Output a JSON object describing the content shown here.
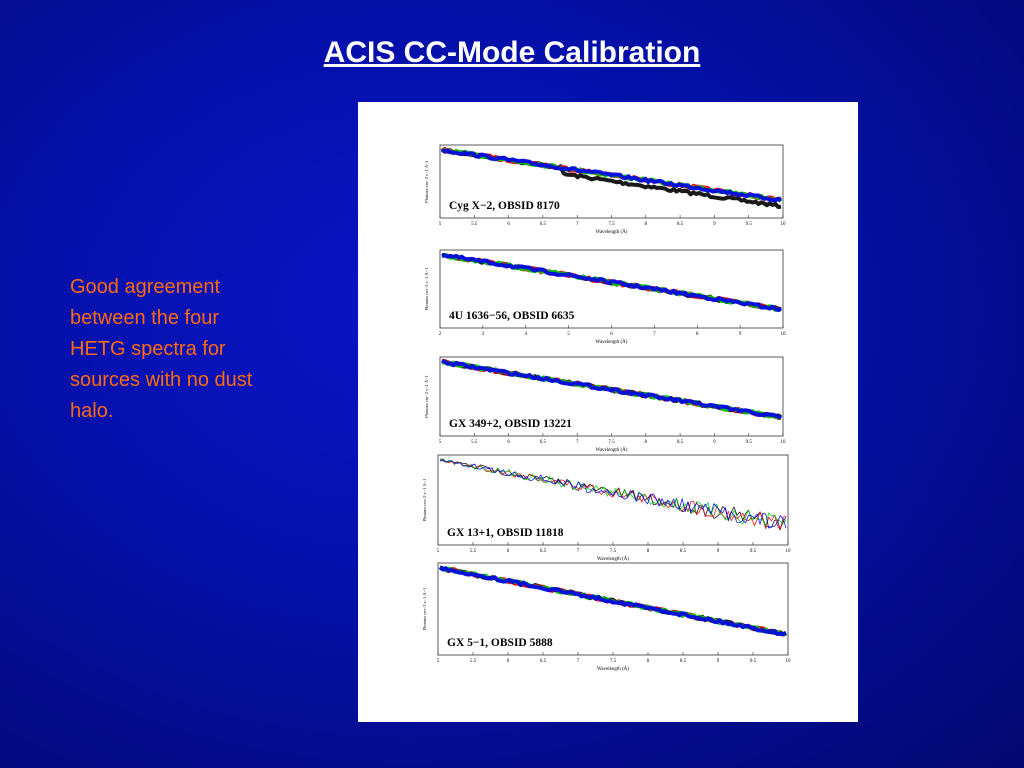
{
  "title": "ACIS CC-Mode Calibration",
  "body": "Good agreement between the four HETG spectra for sources with no dust halo.",
  "panels": [
    {
      "label": "Cyg X−2, OBSID 8170",
      "x_label": "Wavelength (Å)",
      "y_label": "Photons cm−2 s−1 Å−1",
      "x_ticks": [
        "5",
        "5.5",
        "6",
        "6.5",
        "7",
        "7.5",
        "8",
        "8.5",
        "9",
        "9.5",
        "10"
      ]
    },
    {
      "label": "4U 1636−56, OBSID 6635",
      "x_label": "Wavelength (Å)",
      "y_label": "Photons cm−2 s−1 Å−1",
      "x_ticks": [
        "2",
        "3",
        "4",
        "5",
        "6",
        "7",
        "8",
        "9",
        "10"
      ]
    },
    {
      "label": "GX 349+2, OBSID 13221",
      "x_label": "Wavelength (Å)",
      "y_label": "Photons cm−2 s−1 Å−1",
      "x_ticks": [
        "5",
        "5.5",
        "6",
        "6.5",
        "7",
        "7.5",
        "8",
        "8.5",
        "9",
        "9.5",
        "10"
      ]
    },
    {
      "label": "GX 13+1, OBSID 11818",
      "x_label": "Wavelength (Å)",
      "y_label": "Photons cm−2 s−1 Å−1",
      "x_ticks": [
        "5",
        "5.5",
        "6",
        "6.5",
        "7",
        "7.5",
        "8",
        "8.5",
        "9",
        "9.5",
        "10"
      ]
    },
    {
      "label": "GX 5−1, OBSID 5888",
      "x_label": "Wavelength (Å)",
      "y_label": "Photons cm−2 s−1 Å−1",
      "x_ticks": [
        "5",
        "5.5",
        "6",
        "6.5",
        "7",
        "7.5",
        "8",
        "8.5",
        "9",
        "9.5",
        "10"
      ]
    }
  ]
}
